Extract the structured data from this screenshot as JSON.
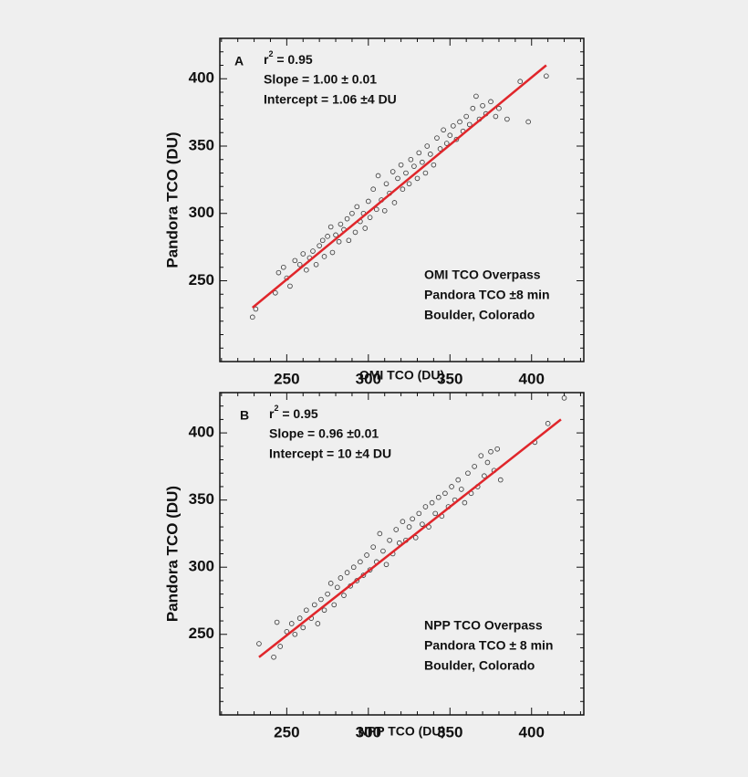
{
  "chart_data": [
    {
      "type": "scatter",
      "panel_label": "A",
      "stats": {
        "r2": {
          "base": "r",
          "sup": "2",
          "rest": " = 0.95"
        },
        "slope": "Slope = 1.00 ± 0.01",
        "intercept": "Intercept = 1.06  ±4 DU"
      },
      "notes": [
        "OMI TCO Overpass",
        "Pandora TCO  ±8 min",
        "Boulder, Colorado"
      ],
      "xlabel": "OMI TCO (DU)",
      "ylabel": "Pandora TCO (DU)",
      "xlim": [
        209,
        432
      ],
      "ylim": [
        190,
        430
      ],
      "xticks": [
        250,
        300,
        350,
        400
      ],
      "yticks": [
        250,
        300,
        350,
        400
      ],
      "xminorticks": [
        210,
        220,
        230,
        240,
        260,
        270,
        280,
        290,
        310,
        320,
        330,
        340,
        360,
        370,
        380,
        390,
        410,
        420,
        430
      ],
      "yminorticks": [
        200,
        210,
        220,
        230,
        240,
        260,
        270,
        280,
        290,
        310,
        320,
        330,
        340,
        360,
        370,
        380,
        390,
        410,
        420
      ],
      "series": [
        {
          "name": "points",
          "type": "scatter",
          "color": "#333333",
          "x": [
            229,
            231,
            243,
            245,
            248,
            250,
            252,
            255,
            258,
            260,
            262,
            264,
            266,
            268,
            270,
            272,
            273,
            275,
            277,
            278,
            280,
            282,
            283,
            285,
            287,
            288,
            290,
            292,
            293,
            295,
            297,
            298,
            300,
            301,
            303,
            305,
            306,
            308,
            310,
            311,
            313,
            315,
            316,
            318,
            320,
            321,
            323,
            325,
            326,
            328,
            330,
            331,
            333,
            335,
            336,
            338,
            340,
            342,
            344,
            346,
            348,
            350,
            352,
            354,
            356,
            358,
            360,
            362,
            364,
            366,
            368,
            370,
            372,
            375,
            378,
            380,
            385,
            393,
            398,
            409
          ],
          "values": [
            223,
            229,
            241,
            256,
            260,
            252,
            246,
            265,
            262,
            270,
            258,
            267,
            272,
            262,
            276,
            280,
            268,
            283,
            290,
            271,
            284,
            279,
            292,
            288,
            296,
            280,
            300,
            286,
            305,
            294,
            300,
            289,
            309,
            297,
            318,
            303,
            328,
            310,
            302,
            322,
            315,
            331,
            308,
            326,
            336,
            318,
            330,
            322,
            340,
            335,
            326,
            345,
            338,
            330,
            350,
            344,
            336,
            356,
            348,
            362,
            352,
            358,
            365,
            355,
            368,
            361,
            372,
            366,
            378,
            387,
            370,
            380,
            374,
            383,
            372,
            378,
            370,
            398,
            368,
            402
          ]
        },
        {
          "name": "fit",
          "type": "line",
          "color": "#e0262b",
          "x": [
            229,
            409
          ],
          "values": [
            230,
            410
          ]
        }
      ]
    },
    {
      "type": "scatter",
      "panel_label": "B",
      "stats": {
        "r2": {
          "base": "r",
          "sup": "2",
          "rest": " = 0.95"
        },
        "slope": "Slope = 0.96  ±0.01",
        "intercept": "Intercept = 10  ±4 DU"
      },
      "notes": [
        "NPP TCO Overpass",
        "Pandora TCO  ± 8 min",
        "Boulder, Colorado"
      ],
      "xlabel": "NPP TCO (DU)",
      "ylabel": "Pandora TCO (DU)",
      "xlim": [
        209,
        432
      ],
      "ylim": [
        190,
        430
      ],
      "xticks": [
        250,
        300,
        350,
        400
      ],
      "yticks": [
        250,
        300,
        350,
        400
      ],
      "xminorticks": [
        210,
        220,
        230,
        240,
        260,
        270,
        280,
        290,
        310,
        320,
        330,
        340,
        360,
        370,
        380,
        390,
        410,
        420,
        430
      ],
      "yminorticks": [
        200,
        210,
        220,
        230,
        240,
        260,
        270,
        280,
        290,
        310,
        320,
        330,
        340,
        360,
        370,
        380,
        390,
        410,
        420
      ],
      "series": [
        {
          "name": "points",
          "type": "scatter",
          "color": "#333333",
          "x": [
            233,
            242,
            244,
            246,
            250,
            253,
            255,
            258,
            260,
            262,
            265,
            267,
            269,
            271,
            273,
            275,
            277,
            279,
            281,
            283,
            285,
            287,
            289,
            291,
            293,
            295,
            297,
            299,
            301,
            303,
            305,
            307,
            309,
            311,
            313,
            315,
            317,
            319,
            321,
            323,
            325,
            327,
            329,
            331,
            333,
            335,
            337,
            339,
            341,
            343,
            345,
            347,
            349,
            351,
            353,
            355,
            357,
            359,
            361,
            363,
            365,
            367,
            369,
            371,
            373,
            375,
            377,
            379,
            381,
            402,
            410,
            420
          ],
          "values": [
            243,
            233,
            259,
            241,
            252,
            258,
            250,
            262,
            255,
            268,
            262,
            272,
            258,
            276,
            268,
            280,
            288,
            272,
            285,
            292,
            279,
            296,
            286,
            300,
            290,
            304,
            294,
            309,
            298,
            315,
            304,
            325,
            312,
            302,
            320,
            310,
            328,
            318,
            334,
            320,
            330,
            336,
            322,
            340,
            332,
            345,
            330,
            348,
            340,
            352,
            338,
            355,
            345,
            360,
            350,
            365,
            358,
            348,
            370,
            355,
            375,
            360,
            383,
            368,
            378,
            386,
            372,
            388,
            365,
            393,
            407,
            426
          ]
        },
        {
          "name": "fit",
          "type": "line",
          "color": "#e0262b",
          "x": [
            233,
            418
          ],
          "values": [
            233,
            410
          ]
        }
      ]
    }
  ]
}
